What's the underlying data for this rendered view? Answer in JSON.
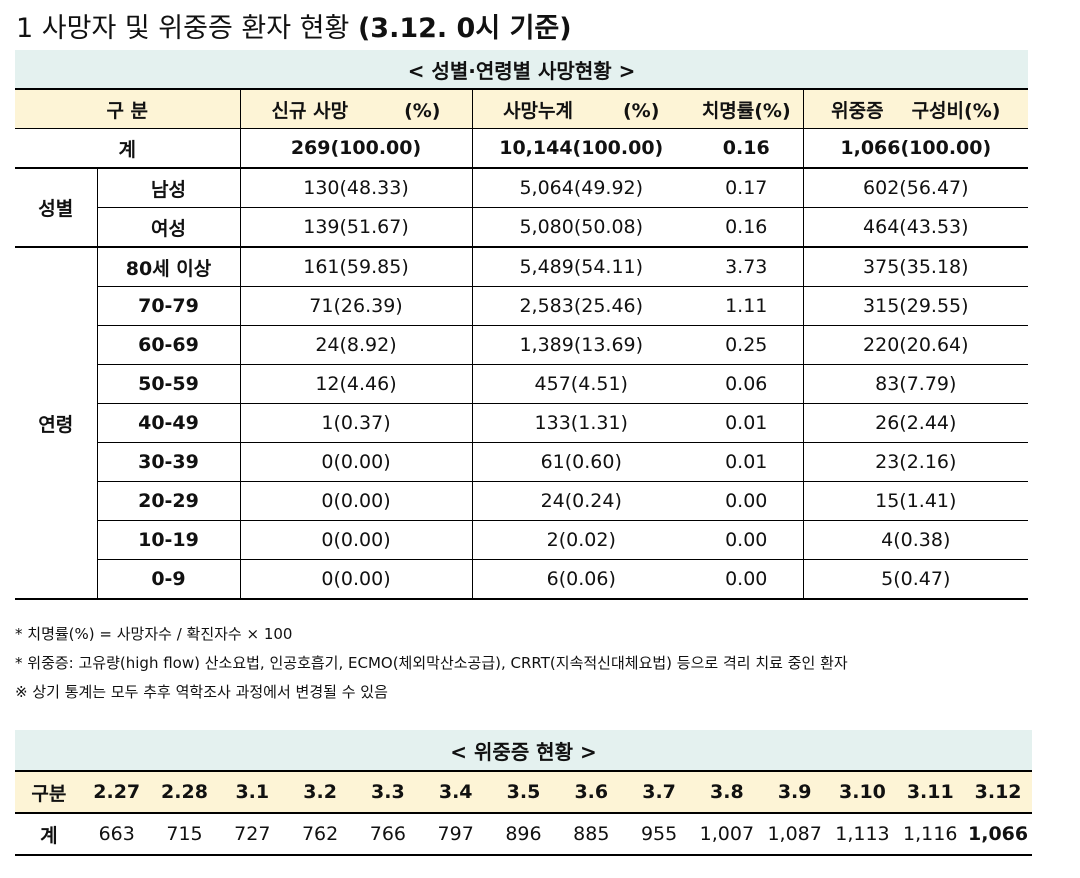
{
  "title": "1 사망자 및 위중증 환자 현황",
  "title_date": "(3.12. 0시 기준)",
  "table1": {
    "caption": "< 성별·연령별 사망현황 >",
    "header": {
      "group": "구 분",
      "new": "신규 사망",
      "new_pct": "(%)",
      "cum": "사망누계",
      "cum_pct": "(%)",
      "fatality": "치명률(%)",
      "severe": "위중증",
      "severe_pct": "구성비(%)"
    },
    "total": [
      "계",
      "269(100.00)",
      "10,144(100.00)",
      "0.16",
      "1,066(100.00)"
    ],
    "groups": [
      {
        "label": "성별",
        "rows": [
          [
            "남성",
            "130(48.33)",
            "5,064(49.92)",
            "0.17",
            "602(56.47)"
          ],
          [
            "여성",
            "139(51.67)",
            "5,080(50.08)",
            "0.16",
            "464(43.53)"
          ]
        ]
      },
      {
        "label": "연령",
        "rows": [
          [
            "80세 이상",
            "161(59.85)",
            "5,489(54.11)",
            "3.73",
            "375(35.18)"
          ],
          [
            "70-79",
            "71(26.39)",
            "2,583(25.46)",
            "1.11",
            "315(29.55)"
          ],
          [
            "60-69",
            "24(8.92)",
            "1,389(13.69)",
            "0.25",
            "220(20.64)"
          ],
          [
            "50-59",
            "12(4.46)",
            "457(4.51)",
            "0.06",
            "83(7.79)"
          ],
          [
            "40-49",
            "1(0.37)",
            "133(1.31)",
            "0.01",
            "26(2.44)"
          ],
          [
            "30-39",
            "0(0.00)",
            "61(0.60)",
            "0.01",
            "23(2.16)"
          ],
          [
            "20-29",
            "0(0.00)",
            "24(0.24)",
            "0.00",
            "15(1.41)"
          ],
          [
            "10-19",
            "0(0.00)",
            "2(0.02)",
            "0.00",
            "4(0.38)"
          ],
          [
            "0-9",
            "0(0.00)",
            "6(0.06)",
            "0.00",
            "5(0.47)"
          ]
        ]
      }
    ]
  },
  "notes": [
    "* 치명률(%) = 사망자수 / 확진자수 × 100",
    "* 위중증: 고유량(high flow) 산소요법, 인공호흡기, ECMO(체외막산소공급), CRRT(지속적신대체요법) 등으로 격리 치료 중인 환자",
    "※ 상기 통계는 모두 추후 역학조사 과정에서 변경될 수 있음"
  ],
  "table2": {
    "caption": "< 위중증 현황 >",
    "header_label": "구분",
    "dates": [
      "2.27",
      "2.28",
      "3.1",
      "3.2",
      "3.3",
      "3.4",
      "3.5",
      "3.6",
      "3.7",
      "3.8",
      "3.9",
      "3.10",
      "3.11",
      "3.12"
    ],
    "row_label": "계",
    "values": [
      "663",
      "715",
      "727",
      "762",
      "766",
      "797",
      "896",
      "885",
      "955",
      "1,007",
      "1,087",
      "1,113",
      "1,116",
      "1,066"
    ]
  }
}
